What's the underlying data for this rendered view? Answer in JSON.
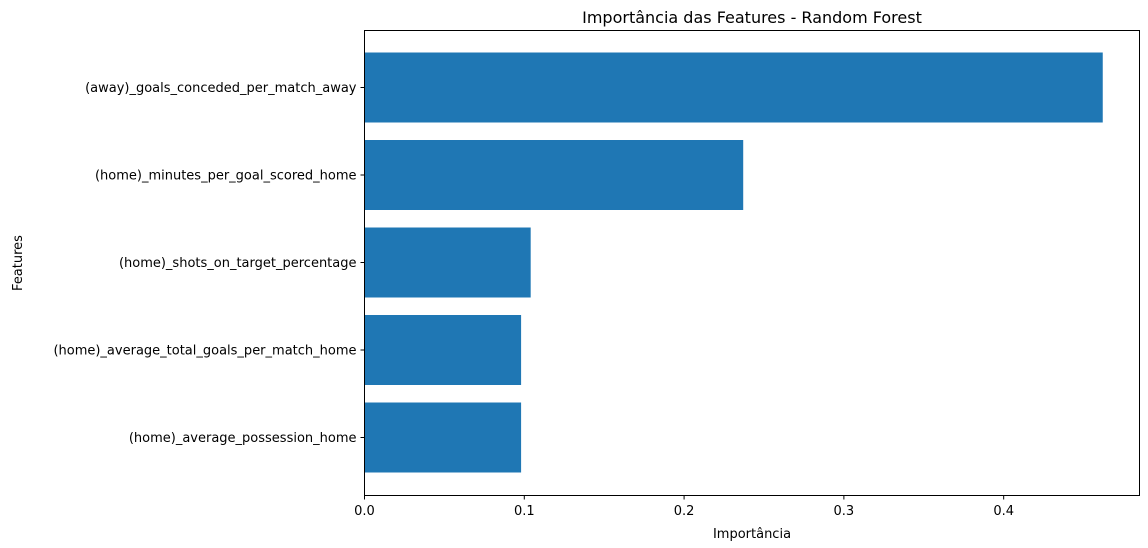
{
  "chart_data": {
    "type": "bar",
    "orientation": "horizontal",
    "title": "Importância das Features - Random Forest",
    "xlabel": "Importância",
    "ylabel": "Features",
    "categories": [
      "(away)_goals_conceded_per_match_away",
      "(home)_minutes_per_goal_scored_home",
      "(home)_shots_on_target_percentage",
      "(home)_average_total_goals_per_match_home",
      "(home)_average_possession_home"
    ],
    "values": [
      0.462,
      0.237,
      0.104,
      0.098,
      0.098
    ],
    "xlim": [
      0,
      0.485
    ],
    "xticks": [
      0.0,
      0.1,
      0.2,
      0.3,
      0.4
    ],
    "xtick_labels": [
      "0.0",
      "0.1",
      "0.2",
      "0.3",
      "0.4"
    ],
    "bar_color": "#1f77b4",
    "grid": false,
    "legend": "none"
  }
}
